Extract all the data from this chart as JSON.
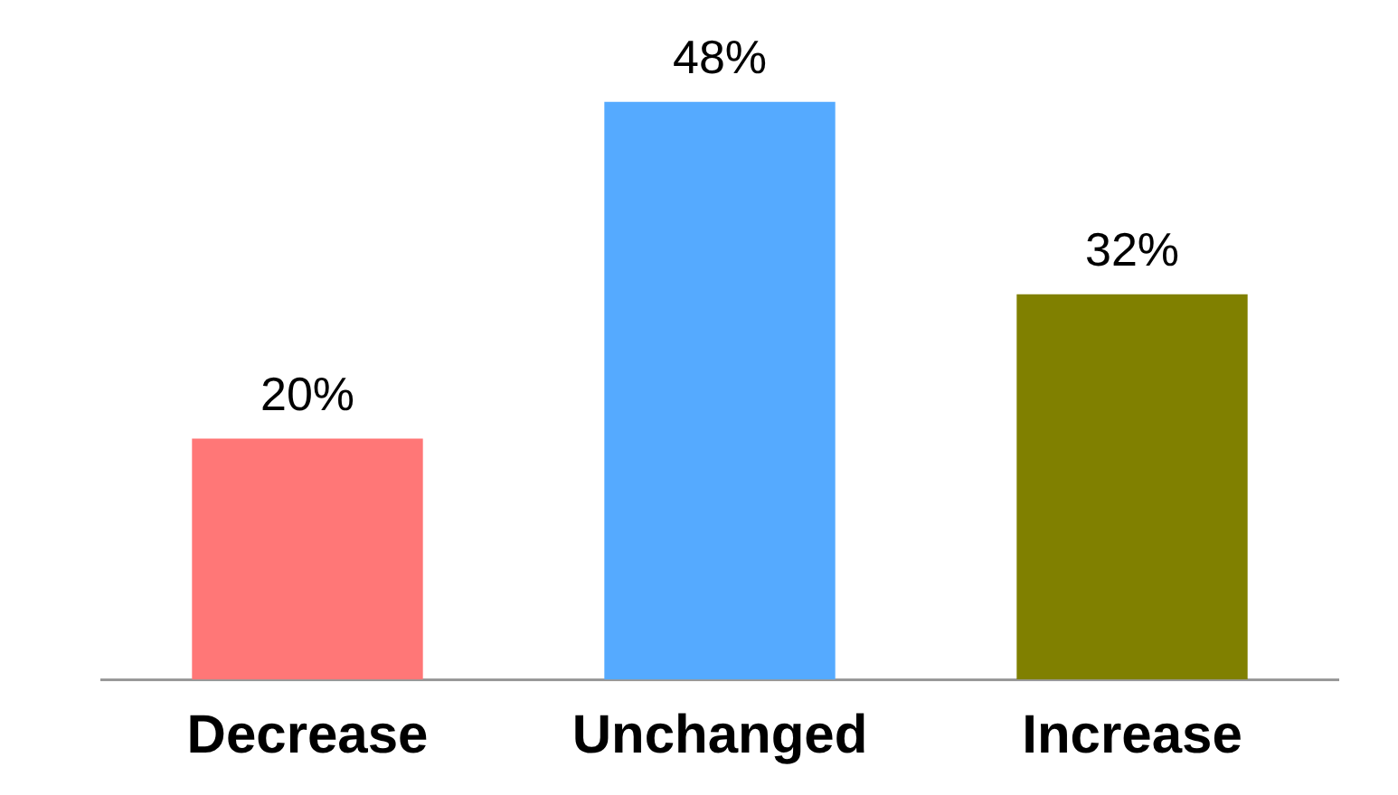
{
  "chart_data": {
    "type": "bar",
    "categories": [
      "Decrease",
      "Unchanged",
      "Increase"
    ],
    "values": [
      20,
      48,
      32
    ],
    "colors": [
      "#ff7777",
      "#55aaff",
      "#808000"
    ],
    "value_labels": [
      "20%",
      "48%",
      "32%"
    ],
    "grid": false,
    "legend": false
  }
}
